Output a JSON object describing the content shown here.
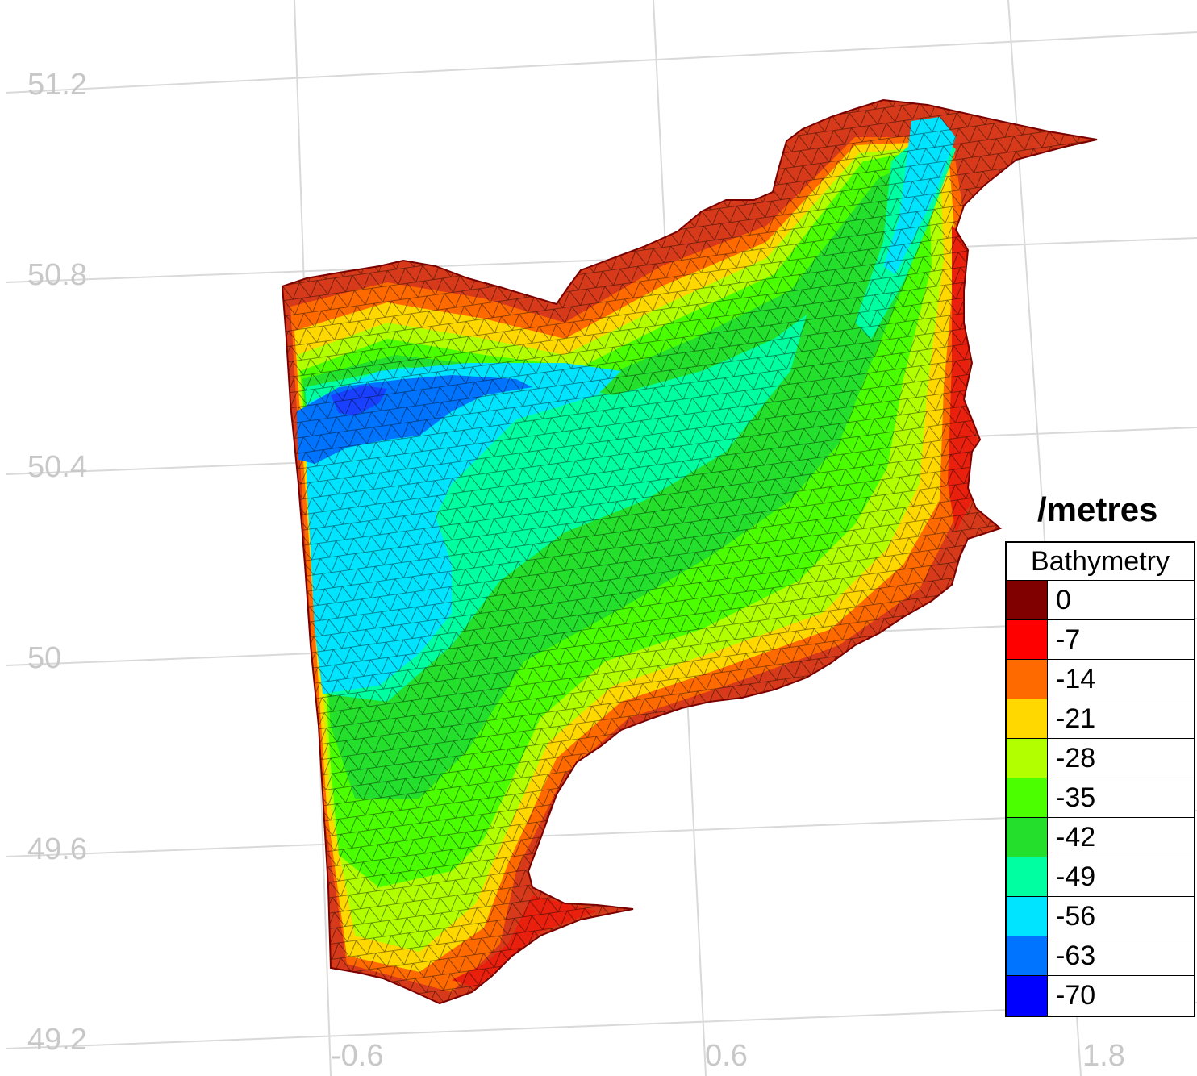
{
  "axes": {
    "lat_ticks": [
      "51.2",
      "50.8",
      "50.4",
      "50",
      "49.6",
      "49.2"
    ],
    "lon_ticks": [
      "-0.6",
      "0.6",
      "1.8"
    ]
  },
  "unit_title": "/metres",
  "legend": {
    "title": "Bathymetry",
    "entries": [
      {
        "value": "0",
        "color": "#800000"
      },
      {
        "value": "-7",
        "color": "#ff0000"
      },
      {
        "value": "-14",
        "color": "#ff6a00"
      },
      {
        "value": "-21",
        "color": "#ffd800"
      },
      {
        "value": "-28",
        "color": "#b2ff00"
      },
      {
        "value": "-35",
        "color": "#4cff00"
      },
      {
        "value": "-42",
        "color": "#24e02c"
      },
      {
        "value": "-49",
        "color": "#00ffa0"
      },
      {
        "value": "-56",
        "color": "#00e4ff"
      },
      {
        "value": "-63",
        "color": "#0074ff"
      },
      {
        "value": "-70",
        "color": "#0000ff"
      }
    ]
  }
}
